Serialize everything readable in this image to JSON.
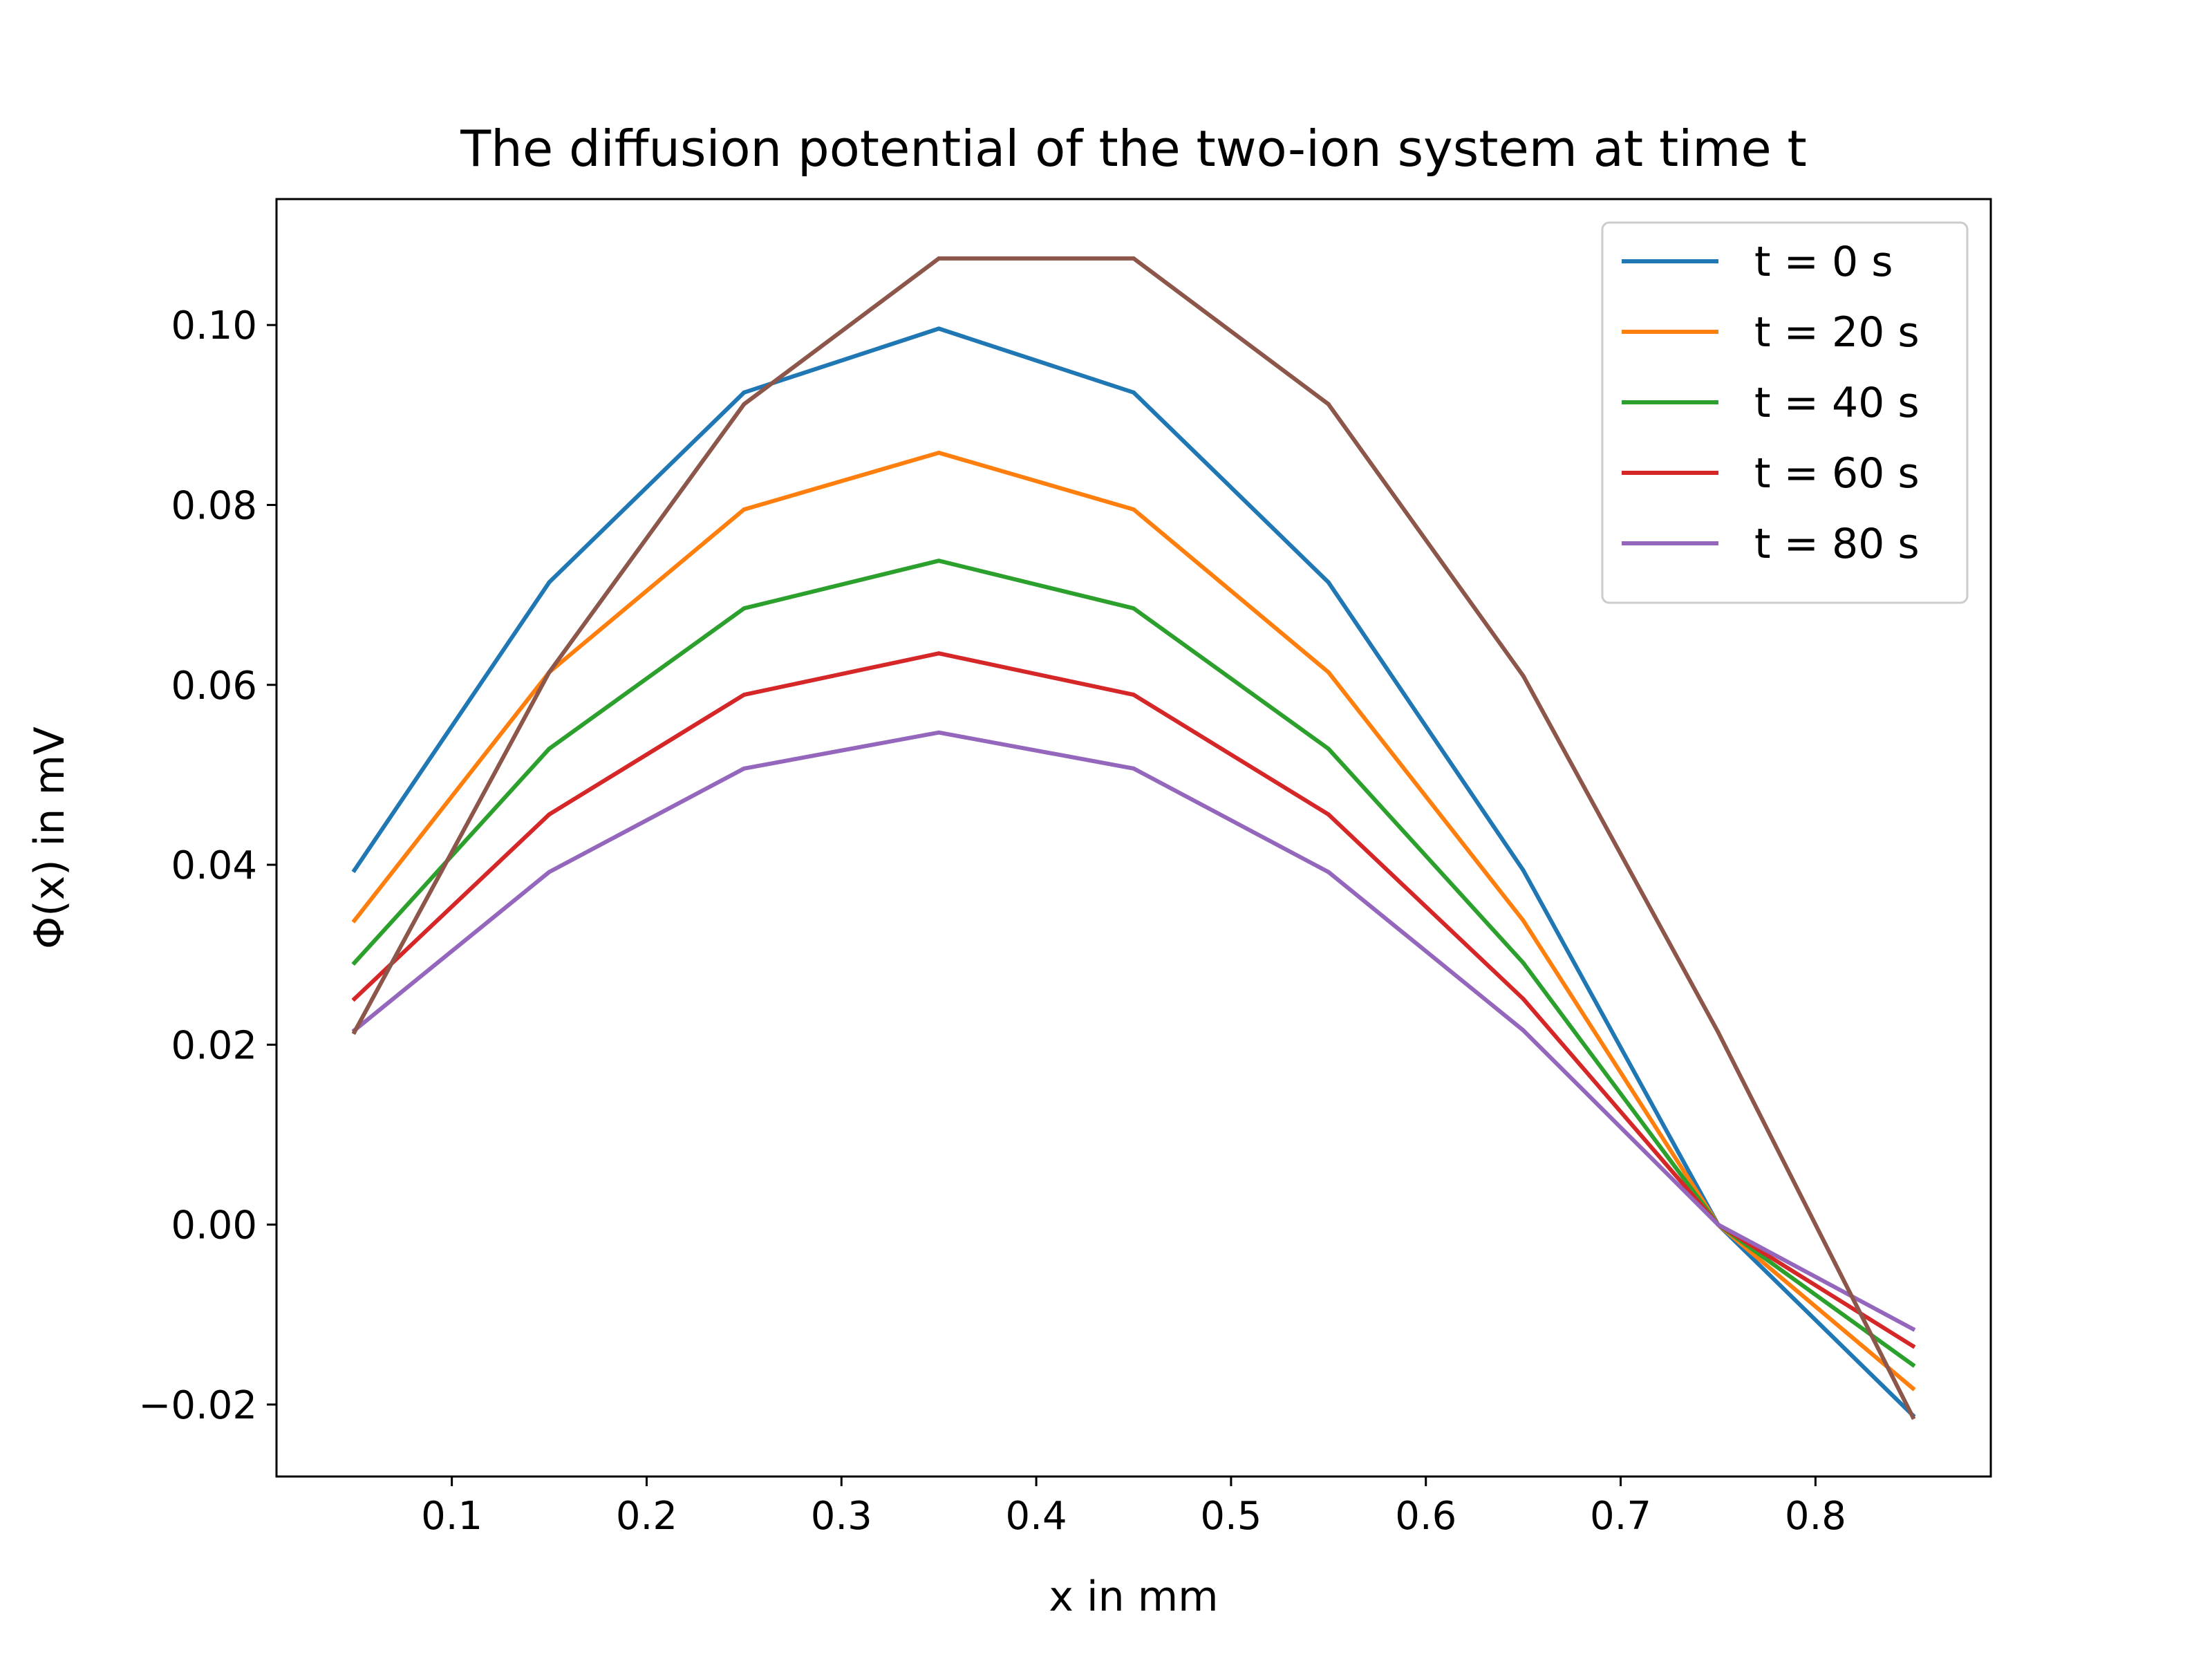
{
  "chart_data": {
    "type": "line",
    "title": "The diffusion potential of the two-ion system at time t",
    "xlabel": "x in mm",
    "ylabel": "Φ(x) in mV",
    "xlim": [
      0.01,
      0.89
    ],
    "ylim": [
      -0.028,
      0.114
    ],
    "xticks": [
      {
        "value": 0.1,
        "label": "0.1"
      },
      {
        "value": 0.2,
        "label": "0.2"
      },
      {
        "value": 0.3,
        "label": "0.3"
      },
      {
        "value": 0.4,
        "label": "0.4"
      },
      {
        "value": 0.5,
        "label": "0.5"
      },
      {
        "value": 0.6,
        "label": "0.6"
      },
      {
        "value": 0.7,
        "label": "0.7"
      },
      {
        "value": 0.8,
        "label": "0.8"
      }
    ],
    "yticks": [
      {
        "value": -0.02,
        "label": "−0.02"
      },
      {
        "value": 0.0,
        "label": "0.00"
      },
      {
        "value": 0.02,
        "label": "0.02"
      },
      {
        "value": 0.04,
        "label": "0.04"
      },
      {
        "value": 0.06,
        "label": "0.06"
      },
      {
        "value": 0.08,
        "label": "0.08"
      },
      {
        "value": 0.1,
        "label": "0.10"
      }
    ],
    "grid": false,
    "legend_position": "top-right",
    "x": [
      0.05,
      0.15,
      0.25,
      0.35,
      0.45,
      0.55,
      0.65,
      0.75,
      0.85
    ],
    "series": [
      {
        "name": "t = 0 s",
        "color": "#1f77b4",
        "in_legend": true,
        "values": [
          0.0394,
          0.0714,
          0.0925,
          0.0996,
          0.0925,
          0.0714,
          0.0394,
          0.0,
          -0.0212
        ]
      },
      {
        "name": "t = 20 s",
        "color": "#ff7f0e",
        "in_legend": true,
        "values": [
          0.0338,
          0.0614,
          0.0795,
          0.0858,
          0.0795,
          0.0614,
          0.0338,
          0.0,
          -0.0182
        ]
      },
      {
        "name": "t = 40 s",
        "color": "#2ca02c",
        "in_legend": true,
        "values": [
          0.0291,
          0.0529,
          0.0685,
          0.0738,
          0.0685,
          0.0529,
          0.0291,
          0.0,
          -0.0156
        ]
      },
      {
        "name": "t = 60 s",
        "color": "#d62728",
        "in_legend": true,
        "values": [
          0.0251,
          0.0456,
          0.0589,
          0.0635,
          0.0589,
          0.0456,
          0.0251,
          0.0,
          -0.0135
        ]
      },
      {
        "name": "t = 80 s",
        "color": "#9467bd",
        "in_legend": true,
        "values": [
          0.0216,
          0.0392,
          0.0507,
          0.0547,
          0.0507,
          0.0392,
          0.0216,
          0.0,
          -0.0116
        ]
      },
      {
        "color": "#8c564b",
        "in_legend": false,
        "values": [
          0.0214,
          0.0614,
          0.0912,
          0.1074,
          0.1074,
          0.0912,
          0.061,
          0.0214,
          -0.0214
        ]
      }
    ]
  }
}
